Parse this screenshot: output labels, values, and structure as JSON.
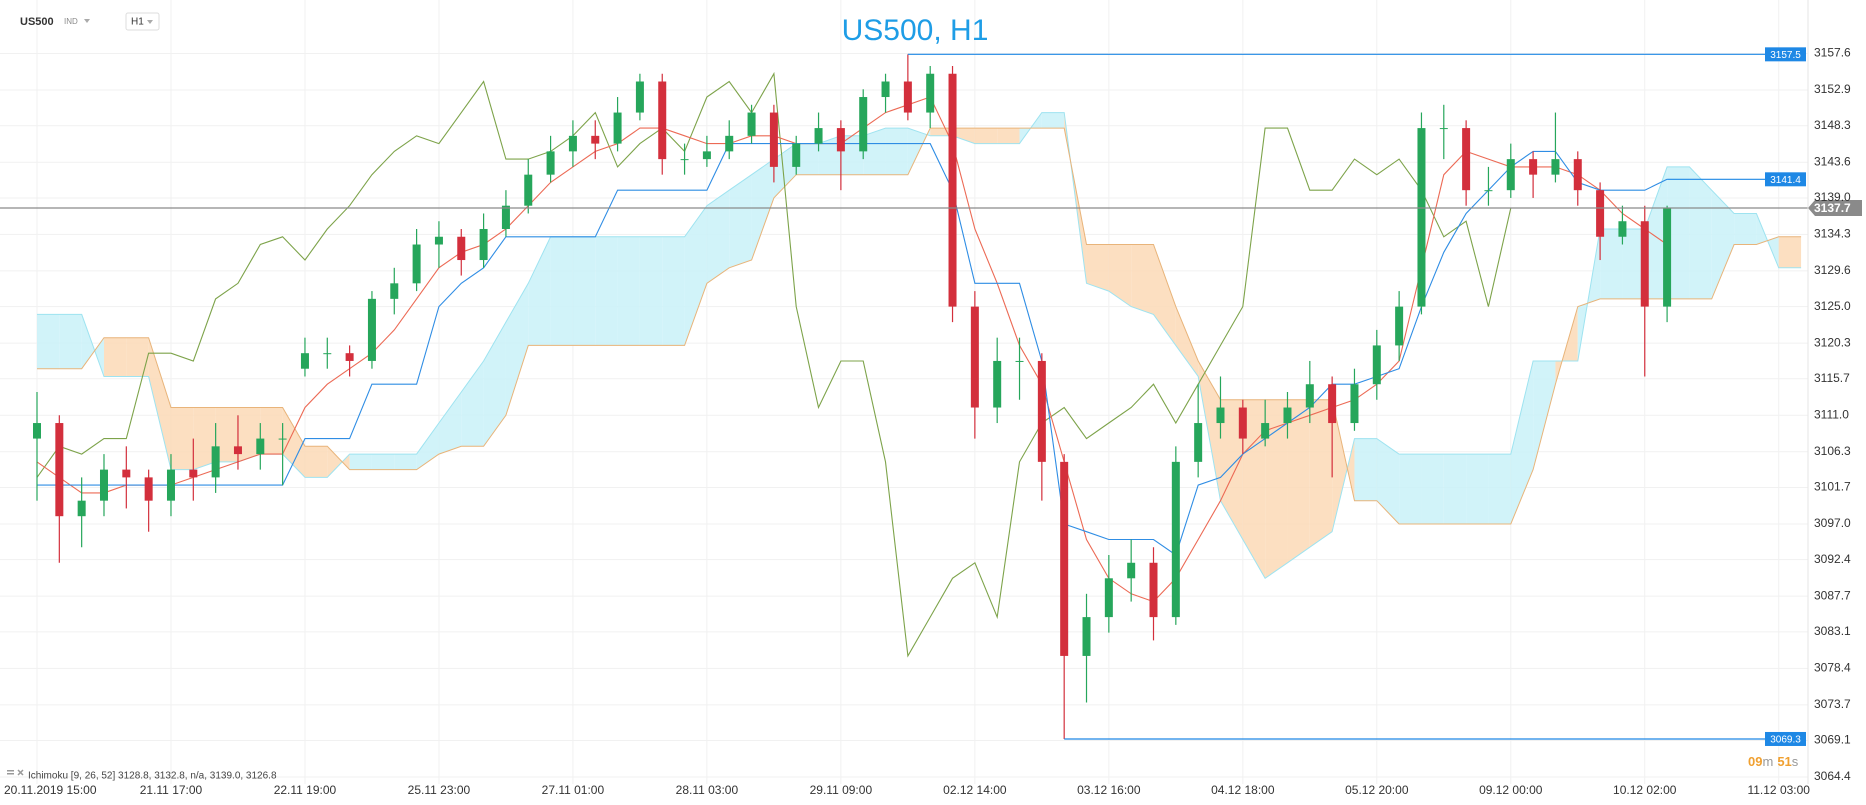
{
  "chart_data": {
    "type": "candlestick",
    "title": "US500, H1",
    "symbol": "US500",
    "market": "IND",
    "timeframe": "H1",
    "indicator_label": "Ichimoku [9, 26, 52] 3128.8, 3132.8, n/a, 3139.0, 3126.8",
    "timer": {
      "minutes": "09",
      "minutes_unit": "m",
      "seconds": "51",
      "seconds_unit": "s"
    },
    "categories": [
      "20.11.2019 15:00",
      null,
      null,
      null,
      null,
      null,
      "21.11 17:00",
      null,
      null,
      null,
      null,
      null,
      "22.11 19:00",
      null,
      null,
      null,
      null,
      null,
      "25.11 23:00",
      null,
      null,
      null,
      null,
      null,
      "27.11 01:00",
      null,
      null,
      null,
      null,
      null,
      "28.11 03:00",
      null,
      null,
      null,
      null,
      null,
      "29.11 09:00",
      null,
      null,
      null,
      null,
      null,
      "02.12 14:00",
      null,
      null,
      null,
      null,
      null,
      "03.12 16:00",
      null,
      null,
      null,
      null,
      null,
      "04.12 18:00",
      null,
      null,
      null,
      null,
      null,
      "05.12 20:00",
      null,
      null,
      null,
      null,
      null,
      "09.12 00:00",
      null,
      null,
      null,
      null,
      null,
      "10.12 02:00",
      null,
      null,
      null,
      null,
      null,
      "11.12 03:00",
      null
    ],
    "candles": {
      "up_color": "#26a65b",
      "down_color": "#d32f3c",
      "open": [
        3108,
        3110,
        3098,
        3100,
        3104,
        3103,
        3100,
        3104,
        3103,
        3107,
        3106,
        3108,
        3117,
        3119,
        3119,
        3118,
        3126,
        3128,
        3133,
        3134,
        3131,
        3135,
        3138,
        3142,
        3145,
        3147,
        3146,
        3150,
        3154,
        3144,
        3144,
        3145,
        3147,
        3150,
        3143,
        3146,
        3148,
        3145,
        3152,
        3154,
        3150,
        3155,
        3125,
        3112,
        3118,
        3118,
        3105,
        3080,
        3085,
        3090,
        3092,
        3085,
        3105,
        3110,
        3112,
        3108,
        3110,
        3112,
        3115,
        3110,
        3115,
        3120,
        3125,
        3148,
        3148,
        3140,
        3140,
        3144,
        3142,
        3144,
        3140,
        3134,
        3136,
        3125,
        null,
        null,
        null,
        null,
        null,
        null
      ],
      "high": [
        3114,
        3111,
        3103,
        3106,
        3107,
        3104,
        3106,
        3108,
        3110,
        3111,
        3110,
        3110,
        3121,
        3121,
        3120,
        3127,
        3130,
        3135,
        3136,
        3135,
        3137,
        3140,
        3144,
        3147,
        3149,
        3149,
        3152,
        3155,
        3155,
        3146,
        3147,
        3149,
        3151,
        3151,
        3147,
        3150,
        3149,
        3153,
        3155,
        3157.5,
        3156,
        3156,
        3127,
        3121,
        3121,
        3119,
        3106,
        3088,
        3093,
        3095,
        3094,
        3107,
        3115,
        3116,
        3113,
        3113,
        3114,
        3118,
        3116,
        3117,
        3122,
        3127,
        3150,
        3151,
        3149,
        3143,
        3146,
        3145,
        3150,
        3145,
        3141,
        3138,
        3138,
        3138,
        null,
        null,
        null,
        null,
        null,
        null
      ],
      "low": [
        3100,
        3092,
        3094,
        3098,
        3099,
        3096,
        3098,
        3100,
        3101,
        3104,
        3104,
        3102,
        3116,
        3117,
        3116,
        3117,
        3124,
        3127,
        3130,
        3129,
        3130,
        3134,
        3137,
        3141,
        3143,
        3144,
        3145,
        3149,
        3142,
        3142,
        3143,
        3144,
        3146,
        3141,
        3142,
        3145,
        3140,
        3144,
        3150,
        3149,
        3148,
        3123,
        3108,
        3110,
        3113,
        3100,
        3069.3,
        3074,
        3083,
        3087,
        3082,
        3084,
        3103,
        3108,
        3106,
        3107,
        3108,
        3110,
        3103,
        3109,
        3113,
        3118,
        3124,
        3144,
        3138,
        3138,
        3139,
        3139,
        3141,
        3138,
        3131,
        3133,
        3116,
        3123,
        null,
        null,
        null,
        null,
        null,
        null
      ],
      "close": [
        3110,
        3098,
        3100,
        3104,
        3103,
        3100,
        3104,
        3103,
        3107,
        3106,
        3108,
        3108,
        3119,
        3119,
        3118,
        3126,
        3128,
        3133,
        3134,
        3131,
        3135,
        3138,
        3142,
        3145,
        3147,
        3146,
        3150,
        3154,
        3144,
        3144,
        3145,
        3147,
        3150,
        3143,
        3146,
        3148,
        3145,
        3152,
        3154,
        3150,
        3155,
        3125,
        3112,
        3118,
        3118,
        3105,
        3080,
        3085,
        3090,
        3092,
        3085,
        3105,
        3110,
        3112,
        3108,
        3110,
        3112,
        3115,
        3110,
        3115,
        3120,
        3125,
        3148,
        3148,
        3140,
        3140,
        3144,
        3142,
        3144,
        3140,
        3134,
        3136,
        3125,
        3137.7,
        null,
        null,
        null,
        null,
        null,
        null
      ]
    },
    "lines": [
      {
        "color": "#7da34a",
        "values": [
          3103,
          3107,
          3106,
          3108,
          3108,
          3119,
          3119,
          3118,
          3126,
          3128,
          3133,
          3134,
          3131,
          3135,
          3138,
          3142,
          3145,
          3147,
          3146,
          3150,
          3154,
          3144,
          3144,
          3145,
          3147,
          3150,
          3143,
          3146,
          3148,
          3145,
          3152,
          3154,
          3150,
          3155,
          3125,
          3112,
          3118,
          3118,
          3105,
          3080,
          3085,
          3090,
          3092,
          3085,
          3105,
          3110,
          3112,
          3108,
          3110,
          3112,
          3115,
          3110,
          3115,
          3120,
          3125,
          3148,
          3148,
          3140,
          3140,
          3144,
          3142,
          3144,
          3140,
          3134,
          3136,
          3125,
          3137.7,
          null,
          null,
          null,
          null,
          null,
          null,
          null,
          null,
          null,
          null,
          null,
          null,
          null
        ]
      },
      {
        "color": "#ec6a55",
        "values": [
          3105,
          3103,
          3101,
          3101,
          3102,
          3102,
          3102,
          3103,
          3104,
          3105,
          3106,
          3106,
          3112,
          3115,
          3117,
          3119,
          3122,
          3126,
          3130,
          3132,
          3133,
          3135,
          3138,
          3141,
          3143,
          3145,
          3146,
          3148,
          3148,
          3147,
          3146,
          3146,
          3147,
          3147,
          3146,
          3146,
          3146,
          3148,
          3150,
          3151,
          3152,
          3146,
          3135,
          3128,
          3120,
          3115,
          3105,
          3095,
          3090,
          3088,
          3087,
          3090,
          3095,
          3100,
          3106,
          3109,
          3110,
          3111,
          3112,
          3113,
          3115,
          3118,
          3130,
          3142,
          3145,
          3144,
          3143,
          3143,
          3143,
          3142,
          3140,
          3137,
          3135,
          3133,
          null,
          null,
          null,
          null,
          null,
          null
        ]
      },
      {
        "color": "#2f8de4",
        "values": [
          3102,
          3102,
          3102,
          3102,
          3102,
          3102,
          3102,
          3102,
          3102,
          3102,
          3102,
          3102,
          3108,
          3108,
          3108,
          3115,
          3115,
          3115,
          3125,
          3128,
          3130,
          3134,
          3134,
          3134,
          3134,
          3134,
          3140,
          3140,
          3140,
          3140,
          3140,
          3146,
          3146,
          3146,
          3146,
          3146,
          3146,
          3146,
          3146,
          3146,
          3146,
          3140,
          3128,
          3128,
          3128,
          3118,
          3097,
          3096,
          3095,
          3095,
          3095,
          3093,
          3102,
          3103,
          3106,
          3108,
          3110,
          3112,
          3115,
          3115,
          3116,
          3117,
          3125,
          3132,
          3137,
          3140,
          3143,
          3145,
          3145,
          3141,
          3140,
          3140,
          3140,
          3141.4,
          null,
          null,
          null,
          null,
          null,
          null
        ]
      }
    ],
    "cloud": {
      "span_a_color": "#9ee3f0",
      "span_b_color": "#e8b47a",
      "bull_fill": "#c9f1f8",
      "bear_fill": "#fbd9b6",
      "span_a": [
        3124,
        3124,
        3124,
        3116,
        3116,
        3116,
        3104,
        3104,
        3105,
        3105,
        3106,
        3106,
        3103,
        3103,
        3106,
        3106,
        3106,
        3106,
        3110,
        3114,
        3118,
        3123,
        3128,
        3134,
        3134,
        3134,
        3134,
        3134,
        3134,
        3134,
        3138,
        3140,
        3142,
        3144,
        3146,
        3146,
        3147,
        3147,
        3148,
        3148,
        3147,
        3147,
        3146,
        3146,
        3146,
        3150,
        3150,
        3128,
        3127,
        3125,
        3124,
        3120,
        3116,
        3100,
        3095,
        3090,
        3092,
        3094,
        3096,
        3108,
        3108,
        3106,
        3106,
        3106,
        3106,
        3106,
        3106,
        3118,
        3118,
        3118,
        3135,
        3135,
        3135,
        3143,
        3143,
        3140,
        3137,
        3137,
        3130,
        3130
      ],
      "span_b": [
        3117,
        3117,
        3117,
        3121,
        3121,
        3121,
        3112,
        3112,
        3112,
        3112,
        3112,
        3112,
        3107,
        3107,
        3104,
        3104,
        3104,
        3104,
        3106,
        3107,
        3107,
        3111,
        3120,
        3120,
        3120,
        3120,
        3120,
        3120,
        3120,
        3120,
        3128,
        3130,
        3131,
        3139,
        3142,
        3142,
        3142,
        3142,
        3142,
        3142,
        3148,
        3148,
        3148,
        3148,
        3148,
        3148,
        3148,
        3133,
        3133,
        3133,
        3133,
        3125,
        3118,
        3113,
        3113,
        3113,
        3113,
        3113,
        3113,
        3100,
        3100,
        3097,
        3097,
        3097,
        3097,
        3097,
        3097,
        3104,
        3115,
        3125,
        3126,
        3126,
        3126,
        3126,
        3126,
        3126,
        3133,
        3133,
        3134,
        3134
      ]
    },
    "price_tags": {
      "high": {
        "value": 3157.5,
        "color": "#1e88e5"
      },
      "kijun": {
        "value": 3141.4,
        "color": "#1e88e5"
      },
      "last": {
        "value": 3137.7,
        "color": "#8a8a8a"
      },
      "low": {
        "value": 3069.3,
        "color": "#1e88e5"
      }
    },
    "ylim": [
      3063.5,
      3164.5
    ],
    "yticks": [
      3157.6,
      3152.9,
      3148.3,
      3143.6,
      {
        "value": 3139,
        "label": "3139.0"
      },
      3134.3,
      3129.6,
      {
        "value": 3125,
        "label": "3125.0"
      },
      3120.3,
      3115.7,
      {
        "value": 3111,
        "label": "3111.0"
      },
      3106.3,
      3101.7,
      {
        "value": 3097,
        "label": "3097.0"
      },
      3092.4,
      3087.7,
      3083.1,
      3078.4,
      3073.7,
      3069.1,
      3064.4
    ],
    "grid": true
  }
}
